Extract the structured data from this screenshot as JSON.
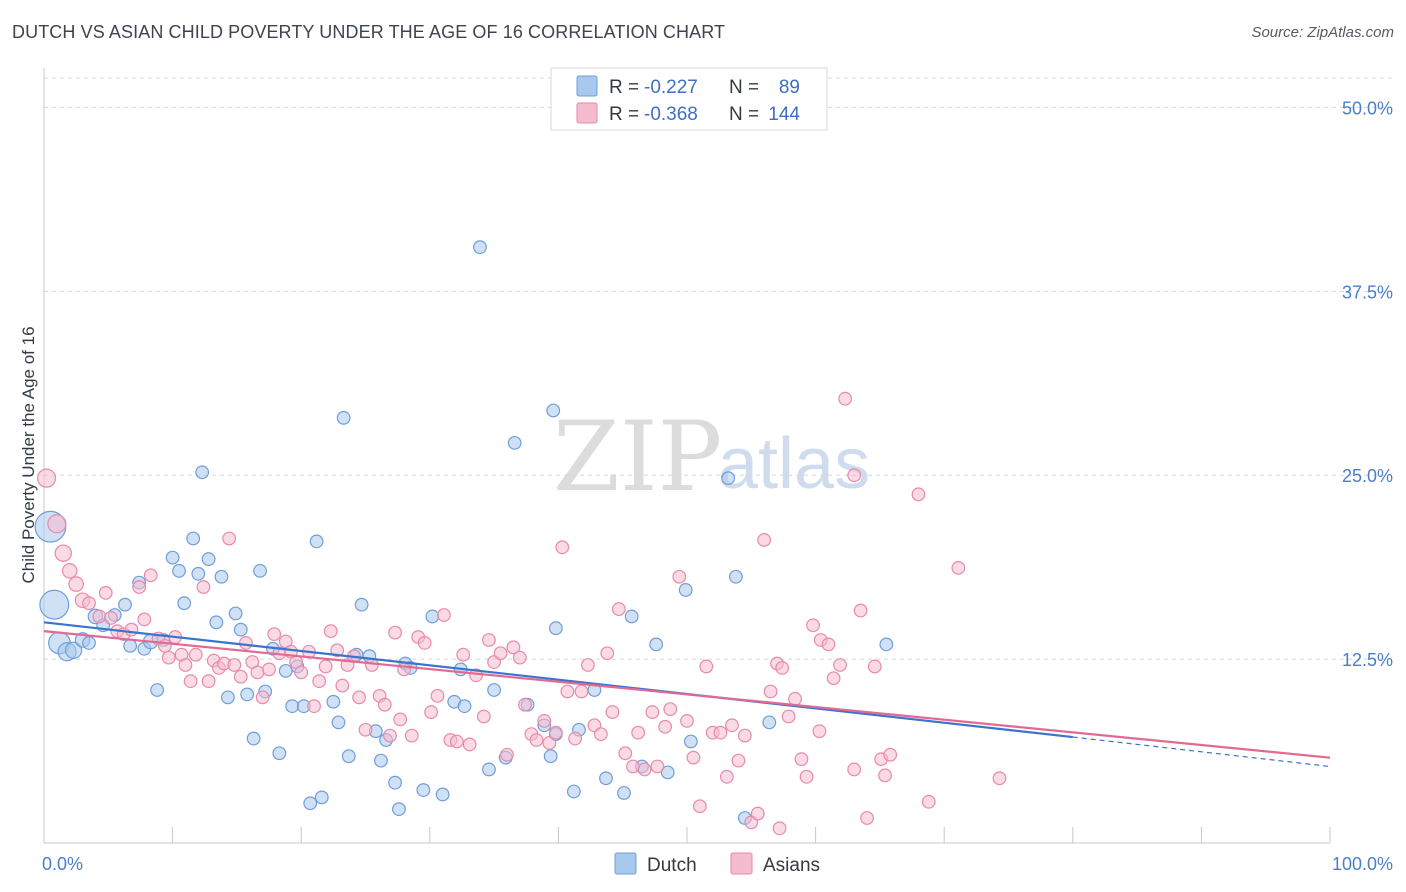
{
  "header": {
    "title": "DUTCH VS ASIAN CHILD POVERTY UNDER THE AGE OF 16 CORRELATION CHART",
    "source": "Source: ZipAtlas.com"
  },
  "watermark": {
    "zip": "ZIP",
    "atlas": "atlas"
  },
  "colors": {
    "dutch_fill": "#a9c8ee",
    "dutch_stroke": "#6f9ed8",
    "dutch_line": "#3a74cc",
    "asian_fill": "#f5bcd0",
    "asian_stroke": "#e88aa9",
    "asian_line": "#e06a95",
    "grid": "#d8d8d8",
    "tick_label": "#4a7fc8"
  },
  "chart_data": {
    "type": "scatter",
    "title": "DUTCH VS ASIAN CHILD POVERTY UNDER THE AGE OF 16 CORRELATION CHART",
    "xlabel": "",
    "ylabel": "Child Poverty Under the Age of 16",
    "xlim": [
      0,
      100
    ],
    "ylim": [
      0,
      52
    ],
    "x_tick_labels": [
      {
        "value": 0,
        "label": "0.0%"
      },
      {
        "value": 100,
        "label": "100.0%"
      }
    ],
    "y_tick_labels": [
      {
        "value": 12.5,
        "label": "12.5%"
      },
      {
        "value": 25,
        "label": "25.0%"
      },
      {
        "value": 37.5,
        "label": "37.5%"
      },
      {
        "value": 50,
        "label": "50.0%"
      }
    ],
    "grid": "horizontal dashed",
    "legend_placement": "top-center",
    "stats_legend": [
      {
        "r_label": "R = ",
        "r_value": "-0.227",
        "n_label": "N = ",
        "n_value": "89"
      },
      {
        "r_label": "R = ",
        "r_value": "-0.368",
        "n_label": "N = ",
        "n_value": "144"
      }
    ],
    "bottom_legend": [
      "Dutch",
      "Asians"
    ],
    "series": [
      {
        "name": "Dutch",
        "trend": {
          "x": [
            0,
            80
          ],
          "y": [
            15.0,
            7.2
          ],
          "dashed_extension_to": [
            100,
            5.2
          ]
        },
        "points": [
          [
            0.5,
            21.5,
            1.7
          ],
          [
            0.8,
            16.2,
            1.6
          ],
          [
            1.2,
            13.6,
            1.2
          ],
          [
            1.8,
            13.0,
            1.0
          ],
          [
            2.3,
            13.1,
            0.9
          ],
          [
            3.0,
            13.8,
            0.8
          ],
          [
            3.5,
            13.6,
            0.7
          ],
          [
            4.0,
            15.4,
            0.8
          ],
          [
            4.6,
            14.8,
            0.7
          ],
          [
            5.5,
            15.5,
            0.7
          ],
          [
            6.3,
            16.2,
            0.7
          ],
          [
            6.7,
            13.4,
            0.7
          ],
          [
            7.4,
            17.7,
            0.7
          ],
          [
            7.8,
            13.2,
            0.7
          ],
          [
            8.3,
            13.7,
            0.8
          ],
          [
            8.8,
            10.4,
            0.7
          ],
          [
            9.3,
            13.8,
            0.7
          ],
          [
            10.0,
            19.4,
            0.7
          ],
          [
            10.5,
            18.5,
            0.7
          ],
          [
            10.9,
            16.3,
            0.7
          ],
          [
            11.6,
            20.7,
            0.7
          ],
          [
            12.0,
            18.3,
            0.7
          ],
          [
            12.3,
            25.2,
            0.7
          ],
          [
            12.8,
            19.3,
            0.7
          ],
          [
            13.4,
            15.0,
            0.7
          ],
          [
            13.8,
            18.1,
            0.7
          ],
          [
            14.3,
            9.9,
            0.7
          ],
          [
            14.9,
            15.6,
            0.7
          ],
          [
            15.3,
            14.5,
            0.7
          ],
          [
            15.8,
            10.1,
            0.7
          ],
          [
            16.3,
            7.1,
            0.7
          ],
          [
            16.8,
            18.5,
            0.7
          ],
          [
            17.2,
            10.3,
            0.7
          ],
          [
            17.8,
            13.2,
            0.7
          ],
          [
            18.3,
            6.1,
            0.7
          ],
          [
            18.8,
            11.7,
            0.7
          ],
          [
            19.3,
            9.3,
            0.7
          ],
          [
            19.7,
            12.0,
            0.7
          ],
          [
            20.2,
            9.3,
            0.7
          ],
          [
            20.7,
            2.7,
            0.7
          ],
          [
            21.2,
            20.5,
            0.7
          ],
          [
            21.6,
            3.1,
            0.7
          ],
          [
            22.5,
            9.6,
            0.7
          ],
          [
            22.9,
            8.2,
            0.7
          ],
          [
            23.3,
            28.9,
            0.7
          ],
          [
            23.7,
            5.9,
            0.7
          ],
          [
            24.3,
            12.8,
            0.7
          ],
          [
            24.7,
            16.2,
            0.7
          ],
          [
            25.3,
            12.7,
            0.7
          ],
          [
            25.8,
            7.6,
            0.7
          ],
          [
            26.2,
            5.6,
            0.7
          ],
          [
            26.6,
            7.0,
            0.7
          ],
          [
            27.3,
            4.1,
            0.7
          ],
          [
            27.6,
            2.3,
            0.7
          ],
          [
            28.1,
            12.2,
            0.7
          ],
          [
            28.5,
            11.9,
            0.7
          ],
          [
            29.5,
            3.6,
            0.7
          ],
          [
            30.2,
            15.4,
            0.7
          ],
          [
            31.0,
            3.3,
            0.7
          ],
          [
            31.9,
            9.6,
            0.7
          ],
          [
            32.4,
            11.8,
            0.7
          ],
          [
            32.7,
            9.3,
            0.7
          ],
          [
            33.9,
            40.5,
            0.7
          ],
          [
            34.6,
            5.0,
            0.7
          ],
          [
            35.0,
            10.4,
            0.7
          ],
          [
            35.9,
            5.8,
            0.7
          ],
          [
            36.6,
            27.2,
            0.7
          ],
          [
            37.6,
            9.4,
            0.7
          ],
          [
            38.9,
            8.0,
            0.7
          ],
          [
            39.4,
            5.9,
            0.7
          ],
          [
            39.8,
            7.4,
            0.7
          ],
          [
            39.6,
            29.4,
            0.7
          ],
          [
            39.8,
            14.6,
            0.7
          ],
          [
            41.2,
            3.5,
            0.7
          ],
          [
            41.6,
            7.7,
            0.7
          ],
          [
            42.8,
            10.4,
            0.7
          ],
          [
            43.7,
            4.4,
            0.7
          ],
          [
            45.1,
            3.4,
            0.7
          ],
          [
            45.7,
            15.4,
            0.7
          ],
          [
            46.5,
            5.2,
            0.7
          ],
          [
            47.6,
            13.5,
            0.7
          ],
          [
            48.5,
            4.8,
            0.7
          ],
          [
            49.9,
            17.2,
            0.7
          ],
          [
            50.3,
            6.9,
            0.7
          ],
          [
            53.2,
            24.8,
            0.7
          ],
          [
            53.8,
            18.1,
            0.7
          ],
          [
            54.5,
            1.7,
            0.7
          ],
          [
            56.4,
            8.2,
            0.7
          ],
          [
            65.5,
            13.5,
            0.7
          ]
        ]
      },
      {
        "name": "Asians",
        "trend": {
          "x": [
            0,
            100
          ],
          "y": [
            14.4,
            5.8
          ]
        },
        "points": [
          [
            0.2,
            24.8,
            1.0
          ],
          [
            1.0,
            21.7,
            1.0
          ],
          [
            1.5,
            19.7,
            0.9
          ],
          [
            2.0,
            18.5,
            0.8
          ],
          [
            2.5,
            17.6,
            0.8
          ],
          [
            3.0,
            16.5,
            0.8
          ],
          [
            3.5,
            16.3,
            0.7
          ],
          [
            4.3,
            15.4,
            0.7
          ],
          [
            4.8,
            17.0,
            0.7
          ],
          [
            5.2,
            15.3,
            0.7
          ],
          [
            5.7,
            14.4,
            0.7
          ],
          [
            6.2,
            14.2,
            0.7
          ],
          [
            6.8,
            14.5,
            0.7
          ],
          [
            7.4,
            17.4,
            0.7
          ],
          [
            7.8,
            15.2,
            0.7
          ],
          [
            8.3,
            18.2,
            0.7
          ],
          [
            8.9,
            13.9,
            0.7
          ],
          [
            9.4,
            13.4,
            0.7
          ],
          [
            9.7,
            12.6,
            0.7
          ],
          [
            10.2,
            14.0,
            0.7
          ],
          [
            10.7,
            12.8,
            0.7
          ],
          [
            11.0,
            12.1,
            0.7
          ],
          [
            11.4,
            11.0,
            0.7
          ],
          [
            11.8,
            12.8,
            0.7
          ],
          [
            12.4,
            17.4,
            0.7
          ],
          [
            12.8,
            11.0,
            0.7
          ],
          [
            13.2,
            12.4,
            0.7
          ],
          [
            13.6,
            11.9,
            0.7
          ],
          [
            14.0,
            12.2,
            0.7
          ],
          [
            14.4,
            20.7,
            0.7
          ],
          [
            14.8,
            12.1,
            0.7
          ],
          [
            15.3,
            11.3,
            0.7
          ],
          [
            15.7,
            13.6,
            0.7
          ],
          [
            16.2,
            12.3,
            0.7
          ],
          [
            16.6,
            11.6,
            0.7
          ],
          [
            17.0,
            9.9,
            0.7
          ],
          [
            17.5,
            11.8,
            0.7
          ],
          [
            17.9,
            14.2,
            0.7
          ],
          [
            18.3,
            12.9,
            0.7
          ],
          [
            18.8,
            13.7,
            0.7
          ],
          [
            19.2,
            13.0,
            0.7
          ],
          [
            19.6,
            12.3,
            0.7
          ],
          [
            20.0,
            11.6,
            0.7
          ],
          [
            20.6,
            13.0,
            0.7
          ],
          [
            21.0,
            9.3,
            0.7
          ],
          [
            21.4,
            11.0,
            0.7
          ],
          [
            21.9,
            12.0,
            0.7
          ],
          [
            22.3,
            14.4,
            0.7
          ],
          [
            22.8,
            13.1,
            0.7
          ],
          [
            23.2,
            10.7,
            0.7
          ],
          [
            23.6,
            12.1,
            0.7
          ],
          [
            24.1,
            12.7,
            0.7
          ],
          [
            24.5,
            9.9,
            0.7
          ],
          [
            25.0,
            7.7,
            0.7
          ],
          [
            25.5,
            12.1,
            0.7
          ],
          [
            26.1,
            10.0,
            0.7
          ],
          [
            26.5,
            9.4,
            0.7
          ],
          [
            26.9,
            7.3,
            0.7
          ],
          [
            27.3,
            14.3,
            0.7
          ],
          [
            27.7,
            8.4,
            0.7
          ],
          [
            28.0,
            11.8,
            0.7
          ],
          [
            28.6,
            7.3,
            0.7
          ],
          [
            29.1,
            14.0,
            0.7
          ],
          [
            29.6,
            13.6,
            0.7
          ],
          [
            30.1,
            8.9,
            0.7
          ],
          [
            30.6,
            10.0,
            0.7
          ],
          [
            31.1,
            15.5,
            0.7
          ],
          [
            31.6,
            7.0,
            0.7
          ],
          [
            32.1,
            6.9,
            0.7
          ],
          [
            32.6,
            12.8,
            0.7
          ],
          [
            33.1,
            6.7,
            0.7
          ],
          [
            33.6,
            11.4,
            0.7
          ],
          [
            34.2,
            8.6,
            0.7
          ],
          [
            34.6,
            13.8,
            0.7
          ],
          [
            35.0,
            12.3,
            0.7
          ],
          [
            35.5,
            12.9,
            0.7
          ],
          [
            36.0,
            6.0,
            0.7
          ],
          [
            36.5,
            13.3,
            0.7
          ],
          [
            37.0,
            12.6,
            0.7
          ],
          [
            37.4,
            9.4,
            0.7
          ],
          [
            37.9,
            7.4,
            0.7
          ],
          [
            38.3,
            7.0,
            0.7
          ],
          [
            38.9,
            8.3,
            0.7
          ],
          [
            39.3,
            6.8,
            0.7
          ],
          [
            39.8,
            7.5,
            0.7
          ],
          [
            40.3,
            20.1,
            0.7
          ],
          [
            40.7,
            10.3,
            0.7
          ],
          [
            41.3,
            7.1,
            0.7
          ],
          [
            41.8,
            10.3,
            0.7
          ],
          [
            42.3,
            12.1,
            0.7
          ],
          [
            42.8,
            8.0,
            0.7
          ],
          [
            43.3,
            7.4,
            0.7
          ],
          [
            43.8,
            12.9,
            0.7
          ],
          [
            44.2,
            8.9,
            0.7
          ],
          [
            44.7,
            15.9,
            0.7
          ],
          [
            45.2,
            6.1,
            0.7
          ],
          [
            45.8,
            5.2,
            0.7
          ],
          [
            46.2,
            7.5,
            0.7
          ],
          [
            46.7,
            5.0,
            0.7
          ],
          [
            47.3,
            8.9,
            0.7
          ],
          [
            47.7,
            5.2,
            0.7
          ],
          [
            48.3,
            7.9,
            0.7
          ],
          [
            48.7,
            9.1,
            0.7
          ],
          [
            49.4,
            18.1,
            0.7
          ],
          [
            50.0,
            8.3,
            0.7
          ],
          [
            50.5,
            5.8,
            0.7
          ],
          [
            51.0,
            2.5,
            0.7
          ],
          [
            51.5,
            12.0,
            0.7
          ],
          [
            52.0,
            7.5,
            0.7
          ],
          [
            52.6,
            7.5,
            0.7
          ],
          [
            53.1,
            4.5,
            0.7
          ],
          [
            53.5,
            8.0,
            0.7
          ],
          [
            54.0,
            5.6,
            0.7
          ],
          [
            54.5,
            7.3,
            0.7
          ],
          [
            55.0,
            1.4,
            0.7
          ],
          [
            55.5,
            2.0,
            0.7
          ],
          [
            56.0,
            20.6,
            0.7
          ],
          [
            56.5,
            10.3,
            0.7
          ],
          [
            57.0,
            12.2,
            0.7
          ],
          [
            57.4,
            11.9,
            0.7
          ],
          [
            57.9,
            8.6,
            0.7
          ],
          [
            58.4,
            9.8,
            0.7
          ],
          [
            58.9,
            5.7,
            0.7
          ],
          [
            59.3,
            4.5,
            0.7
          ],
          [
            59.8,
            14.8,
            0.7
          ],
          [
            60.4,
            13.8,
            0.7
          ],
          [
            61.0,
            13.5,
            0.7
          ],
          [
            61.4,
            11.2,
            0.7
          ],
          [
            61.9,
            12.1,
            0.7
          ],
          [
            62.3,
            30.2,
            0.7
          ],
          [
            63.0,
            25.0,
            0.7
          ],
          [
            63.5,
            15.8,
            0.7
          ],
          [
            64.0,
            1.7,
            0.7
          ],
          [
            64.6,
            12.0,
            0.7
          ],
          [
            65.1,
            5.7,
            0.7
          ],
          [
            65.4,
            4.6,
            0.7
          ],
          [
            65.8,
            6.0,
            0.7
          ],
          [
            68.0,
            23.7,
            0.7
          ],
          [
            68.8,
            2.8,
            0.7
          ],
          [
            71.1,
            18.7,
            0.7
          ],
          [
            74.3,
            4.4,
            0.7
          ],
          [
            63.0,
            5.0,
            0.7
          ],
          [
            57.2,
            1.0,
            0.7
          ],
          [
            60.3,
            7.6,
            0.7
          ]
        ]
      }
    ]
  }
}
